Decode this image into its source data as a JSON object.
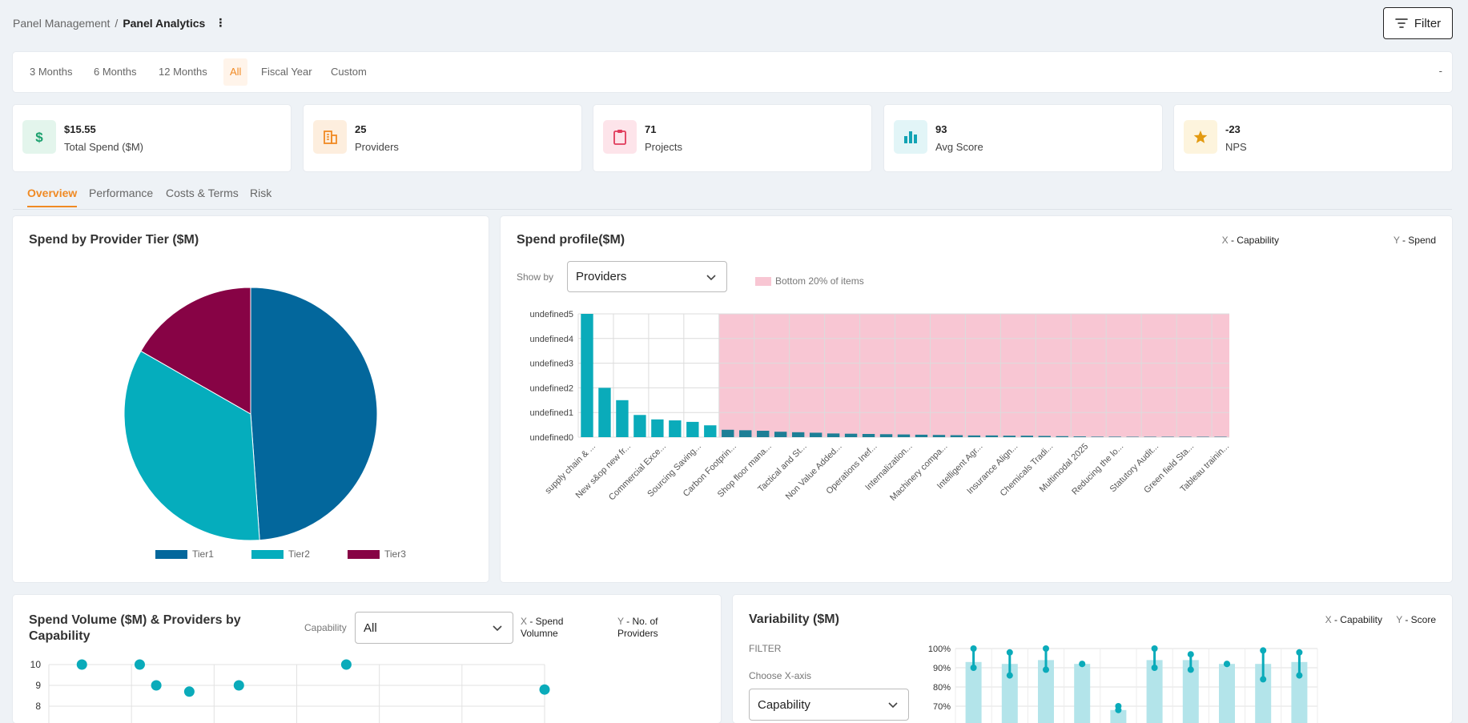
{
  "breadcrumb": {
    "parent": "Panel Management",
    "separator": "/",
    "current": "Panel Analytics"
  },
  "filter_button": {
    "label": "Filter",
    "icon": "filter-lines-icon"
  },
  "periods": {
    "options": [
      "3 Months",
      "6 Months",
      "12 Months",
      "All",
      "Fiscal Year",
      "Custom"
    ],
    "active": "All",
    "range_text": "-"
  },
  "kpis": [
    {
      "value": "$15.55",
      "label": "Total Spend ($M)",
      "icon": "dollar-icon",
      "color": "#1aa06d",
      "bg": "#e3f5ec"
    },
    {
      "value": "25",
      "label": "Providers",
      "icon": "building-icon",
      "color": "#f08a24",
      "bg": "#fdeede"
    },
    {
      "value": "71",
      "label": "Projects",
      "icon": "clipboard-icon",
      "color": "#e03a5a",
      "bg": "#fde4ea"
    },
    {
      "value": "93",
      "label": "Avg Score",
      "icon": "bar-chart-icon",
      "color": "#12a3b4",
      "bg": "#e2f5f7"
    },
    {
      "value": "-23",
      "label": "NPS",
      "icon": "star-icon",
      "color": "#e39a10",
      "bg": "#fdf4dd"
    }
  ],
  "tabs": {
    "items": [
      "Overview",
      "Performance",
      "Costs & Terms",
      "Risk"
    ],
    "active": "Overview"
  },
  "colors": {
    "accent": "#f08a24",
    "teal": "#0aabba",
    "tier1": "#03679c",
    "tier2": "#05adbd",
    "tier3": "#870345",
    "bottom_band": "#f8c6d3"
  },
  "pie_card": {
    "title": "Spend by Provider Tier ($M)",
    "chart_data": {
      "type": "pie",
      "title": "Spend by Provider Tier ($M)",
      "slices": [
        {
          "name": "Tier1",
          "value": 7.6
        },
        {
          "name": "Tier2",
          "value": 5.35
        },
        {
          "name": "Tier3",
          "value": 2.6
        }
      ],
      "legend": "bottom"
    }
  },
  "spend_profile": {
    "title": "Spend profile($M)",
    "x_note": {
      "prefix": "X",
      "text": " - Capability"
    },
    "y_note": {
      "prefix": "Y",
      "text": " - Spend"
    },
    "show_by_label": "Show by",
    "show_by_value": "Providers",
    "legend_label": "Bottom 20% of items",
    "chart_data": {
      "type": "bar",
      "xlabel": "Capability",
      "ylabel": "Spend",
      "y_tick_labels": [
        "undefined0",
        "undefined1",
        "undefined2",
        "undefined3",
        "undefined4",
        "undefined5"
      ],
      "x_tick_labels": [
        "supply chain & ...",
        "New s&op new fr...",
        "Commercial Exce...",
        "Sourcing Saving...",
        "Carbon Footprin...",
        "Shop floor mana...",
        "Tactical and St...",
        "Non Value Added...",
        "Operations Inef...",
        "Internalization...",
        "Machinery compa...",
        "Intelligent Agr...",
        "Insurance Align...",
        "Chemicals Tradi...",
        "Multimodal 2025",
        "Reducing the lo...",
        "Statutory Audit...",
        "Green field Sta...",
        "Tableau trainin..."
      ],
      "ylim": [
        0,
        5
      ],
      "values": [
        5.0,
        2.0,
        1.5,
        0.9,
        0.72,
        0.68,
        0.62,
        0.48,
        0.3,
        0.28,
        0.26,
        0.22,
        0.2,
        0.18,
        0.15,
        0.14,
        0.13,
        0.12,
        0.11,
        0.1,
        0.09,
        0.08,
        0.07,
        0.07,
        0.06,
        0.06,
        0.05,
        0.04,
        0.03,
        0.02,
        0.02,
        0.015,
        0.01,
        0.01,
        0.005,
        0.005,
        0.004
      ],
      "highlight": "bottom 20% of items"
    }
  },
  "volume_card": {
    "title": "Spend Volume ($M) & Providers by Capability",
    "capability_label": "Capability",
    "capability_value": "All",
    "x_note": {
      "prefix": "X",
      "text": " - Spend Volumne"
    },
    "y_note": {
      "prefix": "Y",
      "text": " - No. of Providers"
    },
    "chart_data": {
      "type": "scatter",
      "xlabel": "Spend Volumne",
      "ylabel": "No. of Providers",
      "y_ticks": [
        "10",
        "9",
        "8"
      ],
      "points": [
        {
          "x": 0.4,
          "y": 10
        },
        {
          "x": 1.1,
          "y": 10
        },
        {
          "x": 1.3,
          "y": 9
        },
        {
          "x": 1.7,
          "y": 8.7
        },
        {
          "x": 2.3,
          "y": 9
        },
        {
          "x": 3.6,
          "y": 10
        },
        {
          "x": 6.0,
          "y": 8.8
        }
      ]
    }
  },
  "variability": {
    "title": "Variability ($M)",
    "x_note": {
      "prefix": "X",
      "text": " - Capability"
    },
    "y_note": {
      "prefix": "Y",
      "text": " - Score"
    },
    "filter_label": "FILTER",
    "choose_x_label": "Choose X-axis",
    "choose_x_value": "Capability",
    "chart_data": {
      "type": "bar",
      "ylabel": "Score",
      "y_tick_labels": [
        "100%",
        "90%",
        "80%",
        "70%"
      ],
      "bars": [
        93,
        92,
        94,
        92,
        68,
        94,
        94,
        92,
        92,
        93
      ],
      "ranges": [
        [
          90,
          100
        ],
        [
          86,
          98
        ],
        [
          89,
          100
        ],
        [
          92,
          92
        ],
        [
          68,
          70
        ],
        [
          90,
          100
        ],
        [
          89,
          97
        ],
        [
          92,
          92
        ],
        [
          84,
          99
        ],
        [
          86,
          98
        ]
      ]
    }
  }
}
